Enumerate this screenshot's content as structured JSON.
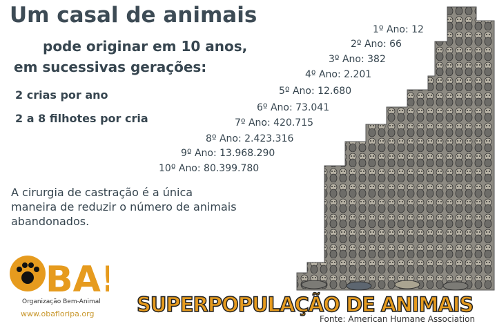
{
  "title": "Um casal de animais",
  "subtitle_line1": "pode originar em 10 anos,",
  "subtitle_line2": "em sucessivas gerações:",
  "facts": [
    "2 crias por ano",
    "2 a 8 filhotes por cria"
  ],
  "years": [
    "1º Ano: 12",
    "2º Ano: 66",
    "3º Ano: 382",
    "4º Ano: 2.201",
    "5º Ano: 12.680",
    "6º Ano: 73.041",
    "7º Ano: 420.715",
    "8º Ano: 2.423.316",
    "9º Ano: 13.968.290",
    "10º Ano: 80.399.780"
  ],
  "message": "A cirurgia de castração é a única maneira de reduzir o número de animais abandonados.",
  "logo": {
    "text": "OBA!",
    "org": "Organização Bem-Animal",
    "website": "www.obafloripa.org"
  },
  "headline": "SUPERPOPULAÇÃO DE ANIMAIS",
  "source": "Fonte: American Humane Association",
  "colors": {
    "text": "#36454f",
    "brand": "#e69b1e",
    "animals": "#8a8780"
  }
}
